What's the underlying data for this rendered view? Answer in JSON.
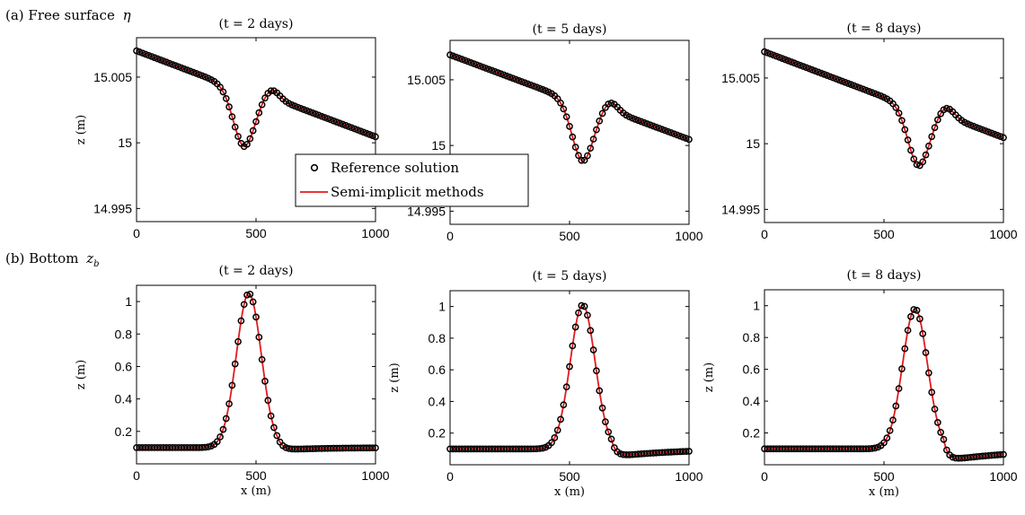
{
  "figure": {
    "row_labels": [
      {
        "text": "(a) Free surface",
        "symbol": "η"
      },
      {
        "text": "(b) Bottom",
        "symbol": "z",
        "subscript": "b"
      }
    ],
    "legend": {
      "entries": [
        "Reference solution",
        "Semi-implicit methods"
      ],
      "placement": "center, overlapping first-row panels",
      "markers": {
        "reference": "open-circle",
        "semi_implicit": "solid-line"
      }
    },
    "colors": {
      "reference": "#000000",
      "semi_implicit": "#e41a1c",
      "axes": "#000000",
      "background": "#ffffff"
    }
  },
  "chart_data": [
    {
      "type": "line",
      "title": "(t = 2 days)",
      "xlabel": "",
      "ylabel": "z (m)",
      "xlim": [
        0,
        1000
      ],
      "ylim": [
        14.994,
        15.008
      ],
      "x_ticks": [
        "0",
        "500",
        "1000"
      ],
      "y_ticks": [
        "14.995",
        "15",
        "15.005"
      ],
      "y_tick_values": [
        14.995,
        15.0,
        15.005
      ],
      "shape": {
        "kind": "eta",
        "c": 450,
        "w": 45,
        "base": 15.0,
        "s0": 15.007,
        "s1": 15.0001,
        "amp": -0.00418,
        "peakShift": 30,
        "peakAmp": 0.00115
      },
      "series": [
        {
          "name": "Reference solution",
          "style": "markers"
        },
        {
          "name": "Semi-implicit methods",
          "style": "line"
        }
      ]
    },
    {
      "type": "line",
      "title": "(t = 5 days)",
      "xlabel": "",
      "ylabel": "",
      "xlim": [
        0,
        1000
      ],
      "ylim": [
        14.994,
        15.008
      ],
      "x_ticks": [
        "0",
        "500",
        "1000"
      ],
      "y_ticks": [
        "14.995",
        "15",
        "15.005"
      ],
      "y_tick_values": [
        14.995,
        15.0,
        15.005
      ],
      "shape": {
        "kind": "eta",
        "c": 555,
        "w": 45,
        "base": 15.0,
        "s0": 15.0069,
        "s1": 15.0001,
        "amp": -0.00432,
        "peakShift": 30,
        "peakAmp": 0.00118
      },
      "series": [
        {
          "name": "Reference solution",
          "style": "markers"
        },
        {
          "name": "Semi-implicit methods",
          "style": "line"
        }
      ]
    },
    {
      "type": "line",
      "title": "(t = 8 days)",
      "xlabel": "",
      "ylabel": "",
      "xlim": [
        0,
        1000
      ],
      "ylim": [
        14.994,
        15.008
      ],
      "x_ticks": [
        "0",
        "500",
        "1000"
      ],
      "y_ticks": [
        "14.995",
        "15",
        "15.005"
      ],
      "y_tick_values": [
        14.995,
        15.0,
        15.005
      ],
      "shape": {
        "kind": "eta",
        "c": 645,
        "w": 45,
        "base": 15.0,
        "s0": 15.007,
        "s1": 15.0001,
        "amp": -0.00425,
        "peakShift": 32,
        "peakAmp": 0.00125
      },
      "series": [
        {
          "name": "Reference solution",
          "style": "markers"
        },
        {
          "name": "Semi-implicit methods",
          "style": "line"
        }
      ]
    },
    {
      "type": "line",
      "title": "(t = 2 days)",
      "xlabel": "x (m)",
      "ylabel": "z (m)",
      "xlim": [
        0,
        1000
      ],
      "ylim": [
        0,
        1.1
      ],
      "x_ticks": [
        "0",
        "500",
        "1000"
      ],
      "y_ticks": [
        "0.2",
        "0.4",
        "0.6",
        "0.8",
        "1"
      ],
      "y_tick_values": [
        0.2,
        0.4,
        0.6,
        0.8,
        1.0
      ],
      "shape": {
        "kind": "bottom",
        "c": 470,
        "w": 52,
        "base": 0.1,
        "amp": 0.95,
        "dip": 0.015,
        "dipPos": 70,
        "dipW": 60
      },
      "series": [
        {
          "name": "Reference solution",
          "style": "markers"
        },
        {
          "name": "Semi-implicit methods",
          "style": "line"
        }
      ]
    },
    {
      "type": "line",
      "title": "(t = 5 days)",
      "xlabel": "x (m)",
      "ylabel": "z (m)",
      "xlim": [
        0,
        1000
      ],
      "ylim": [
        0,
        1.1
      ],
      "x_ticks": [
        "0",
        "500",
        "1000"
      ],
      "y_ticks": [
        "0.2",
        "0.4",
        "0.6",
        "0.8",
        "1"
      ],
      "y_tick_values": [
        0.2,
        0.4,
        0.6,
        0.8,
        1.0
      ],
      "shape": {
        "kind": "bottom",
        "c": 555,
        "w": 52,
        "base": 0.1,
        "amp": 0.91,
        "dip": 0.05,
        "dipPos": 75,
        "dipW": 90
      },
      "series": [
        {
          "name": "Reference solution",
          "style": "markers"
        },
        {
          "name": "Semi-implicit methods",
          "style": "line"
        }
      ]
    },
    {
      "type": "line",
      "title": "(t = 8 days)",
      "xlabel": "x (m)",
      "ylabel": "z (m)",
      "xlim": [
        0,
        1000
      ],
      "ylim": [
        0,
        1.1
      ],
      "x_ticks": [
        "0",
        "500",
        "1000"
      ],
      "y_ticks": [
        "0.2",
        "0.4",
        "0.6",
        "0.8",
        "1"
      ],
      "y_tick_values": [
        0.2,
        0.4,
        0.6,
        0.8,
        1.0
      ],
      "shape": {
        "kind": "bottom",
        "c": 630,
        "w": 52,
        "base": 0.1,
        "amp": 0.88,
        "dip": 0.075,
        "dipPos": 75,
        "dipW": 110
      },
      "series": [
        {
          "name": "Reference solution",
          "style": "markers"
        },
        {
          "name": "Semi-implicit methods",
          "style": "line"
        }
      ]
    }
  ]
}
